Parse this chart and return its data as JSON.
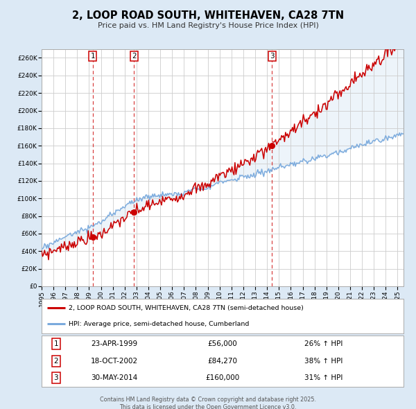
{
  "title": "2, LOOP ROAD SOUTH, WHITEHAVEN, CA28 7TN",
  "subtitle": "Price paid vs. HM Land Registry's House Price Index (HPI)",
  "line1_label": "2, LOOP ROAD SOUTH, WHITEHAVEN, CA28 7TN (semi-detached house)",
  "line2_label": "HPI: Average price, semi-detached house, Cumberland",
  "line1_color": "#cc0000",
  "line2_color": "#7aaadd",
  "fill_color": "#b8d4ee",
  "background_color": "#dce9f5",
  "plot_bg_color": "#ffffff",
  "grid_color": "#cccccc",
  "sale_points": [
    {
      "date_num": 1999.31,
      "price": 56000,
      "label": "1",
      "date_str": "23-APR-1999",
      "price_str": "£56,000",
      "hpi_pct": "26% ↑ HPI"
    },
    {
      "date_num": 2002.8,
      "price": 84270,
      "label": "2",
      "date_str": "18-OCT-2002",
      "price_str": "£84,270",
      "hpi_pct": "38% ↑ HPI"
    },
    {
      "date_num": 2014.41,
      "price": 160000,
      "label": "3",
      "date_str": "30-MAY-2014",
      "price_str": "£160,000",
      "hpi_pct": "31% ↑ HPI"
    }
  ],
  "xlim": [
    1995.0,
    2025.5
  ],
  "ylim": [
    0,
    270000
  ],
  "yticks": [
    0,
    20000,
    40000,
    60000,
    80000,
    100000,
    120000,
    140000,
    160000,
    180000,
    200000,
    220000,
    240000,
    260000
  ],
  "xticks": [
    1995,
    1996,
    1997,
    1998,
    1999,
    2000,
    2001,
    2002,
    2003,
    2004,
    2005,
    2006,
    2007,
    2008,
    2009,
    2010,
    2011,
    2012,
    2013,
    2014,
    2015,
    2016,
    2017,
    2018,
    2019,
    2020,
    2021,
    2022,
    2023,
    2024,
    2025
  ],
  "footer_line1": "Contains HM Land Registry data © Crown copyright and database right 2025.",
  "footer_line2": "This data is licensed under the Open Government Licence v3.0."
}
